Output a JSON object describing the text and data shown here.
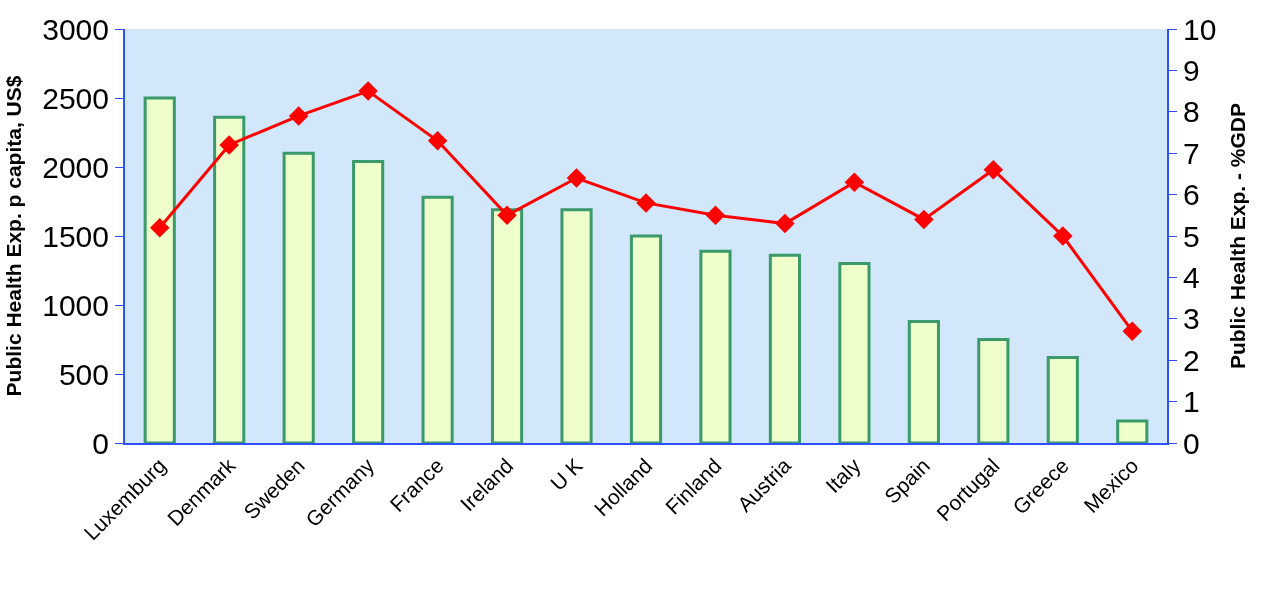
{
  "chart_data": {
    "type": "bar",
    "ylabel": "Public Health Exp. p capita, US$",
    "y2label": "Public Health Exp. - %GDP",
    "categories": [
      "Luxemburg",
      "Denmark",
      "Sweden",
      "Germany",
      "France",
      "Ireland",
      "U K",
      "Holland",
      "Finland",
      "Austria",
      "Italy",
      "Spain",
      "Portugal",
      "Greece",
      "Mexico"
    ],
    "series": [
      {
        "color": "#eeffcc",
        "values": [
          2500,
          2360,
          2100,
          2040,
          1780,
          1690,
          1690,
          1500,
          1390,
          1360,
          1300,
          880,
          750,
          620,
          160
        ]
      },
      {
        "type": "line",
        "axis": "y2",
        "color": "#ff0000",
        "marker": "diamond",
        "line_style": "solid",
        "values": [
          5.2,
          7.2,
          7.9,
          8.5,
          7.3,
          5.5,
          6.4,
          5.8,
          5.5,
          5.3,
          6.3,
          5.4,
          6.6,
          5.0,
          2.7
        ]
      }
    ],
    "ylim": [
      0,
      3000
    ],
    "yticks": [
      0,
      500,
      1000,
      1500,
      2000,
      2500,
      3000
    ],
    "y2lim": [
      0,
      10
    ],
    "y2ticks": [
      0,
      1,
      2,
      3,
      4,
      5,
      6,
      7,
      8,
      9,
      10
    ],
    "grid": false,
    "legend": false
  }
}
